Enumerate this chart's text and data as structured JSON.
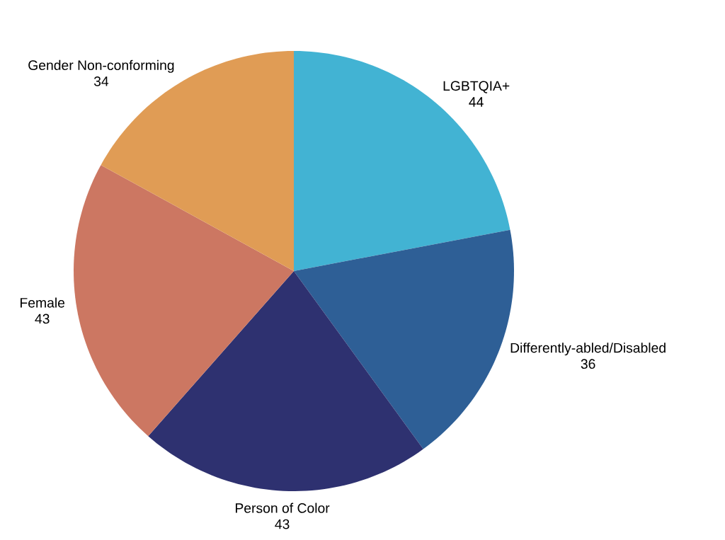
{
  "chart_data": {
    "type": "pie",
    "categories": [
      "LGBTQIA+",
      "Differently-abled/Disabled",
      "Person of Color",
      "Female",
      "Gender Non-conforming"
    ],
    "values": [
      44,
      36,
      43,
      43,
      34
    ],
    "colors": [
      "#42b3d3",
      "#2e5f96",
      "#2e3170",
      "#cc7762",
      "#e09c55"
    ],
    "data_labels": true
  }
}
